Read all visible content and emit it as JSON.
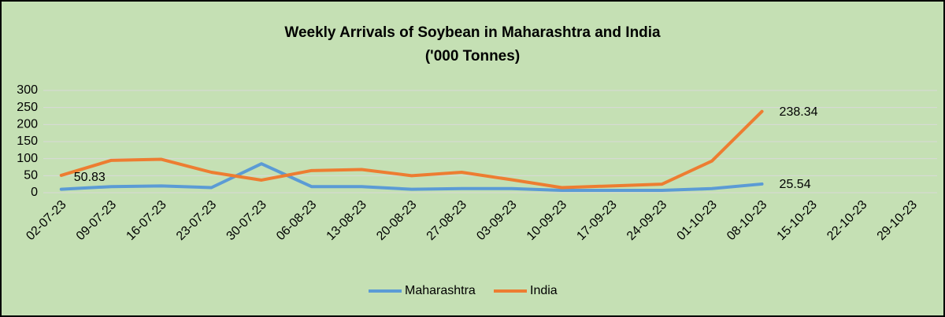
{
  "chart_data": {
    "type": "line",
    "title": "Weekly Arrivals of Soybean in Maharashtra and India",
    "subtitle": "('000 Tonnes)",
    "categories": [
      "02-07-23",
      "09-07-23",
      "16-07-23",
      "23-07-23",
      "30-07-23",
      "06-08-23",
      "13-08-23",
      "20-08-23",
      "27-08-23",
      "03-09-23",
      "10-09-23",
      "17-09-23",
      "24-09-23",
      "01-10-23",
      "08-10-23",
      "15-10-23",
      "22-10-23",
      "29-10-23"
    ],
    "series": [
      {
        "name": "Maharashtra",
        "color": "#5b9bd5",
        "values": [
          10,
          18,
          20,
          15,
          85,
          18,
          18,
          10,
          12,
          12,
          7,
          7,
          7,
          12,
          25.54,
          null,
          null,
          null
        ],
        "value_labels": [
          null,
          null,
          null,
          null,
          null,
          null,
          null,
          null,
          null,
          null,
          null,
          null,
          null,
          null,
          "25.54",
          null,
          null,
          null
        ]
      },
      {
        "name": "India",
        "color": "#ed7d31",
        "values": [
          50.83,
          95,
          98,
          60,
          37,
          65,
          68,
          50,
          60,
          38,
          15,
          20,
          25,
          93,
          238.34,
          null,
          null,
          null
        ],
        "value_labels": [
          "50.83",
          null,
          null,
          null,
          null,
          null,
          null,
          null,
          null,
          null,
          null,
          null,
          null,
          null,
          "238.34",
          null,
          null,
          null
        ]
      }
    ],
    "ylim": [
      0,
      300
    ],
    "yticks": [
      0,
      50,
      100,
      150,
      200,
      250,
      300
    ],
    "grid": true,
    "legend": "bottom"
  }
}
